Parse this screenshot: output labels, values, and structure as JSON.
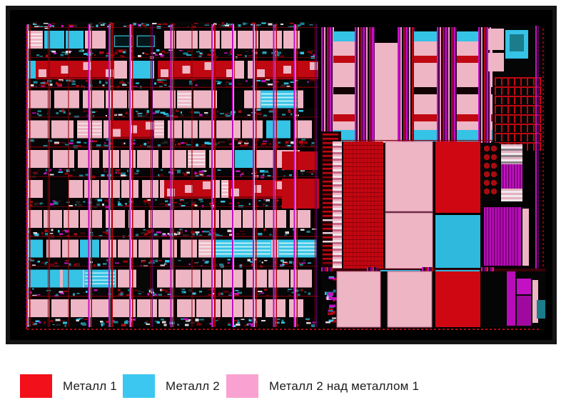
{
  "legend": {
    "items": [
      {
        "id": "metal1",
        "label": "Металл 1",
        "color": "#f2101a"
      },
      {
        "id": "metal2",
        "label": "Металл 2",
        "color": "#3bc7ef"
      },
      {
        "id": "metal2-over-metal1",
        "label": "Металл 2 над металлом 1",
        "color": "#f9a2d1"
      }
    ]
  },
  "figure": {
    "type": "ic-layout",
    "palette": {
      "background": "#000000",
      "frame": "#141414",
      "cell_pink": "#eeb5c4",
      "stripe_white": "#f6e9ee",
      "metal1_red": "#d00a14",
      "metal1_dense": "#c40710",
      "metal1_dark": "#8a0008",
      "metal2_cyan": "#35c3e6",
      "metal2_deep": "#2fb9dc",
      "teal": "#1b7d8c",
      "magenta": "#c410c4",
      "purple": "#6a006a",
      "dark_red_line": "#6a0008"
    }
  }
}
